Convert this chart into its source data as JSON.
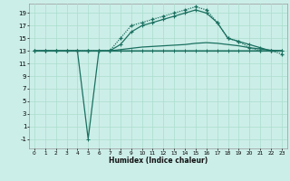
{
  "xlabel": "Humidex (Indice chaleur)",
  "bg_color": "#cceee8",
  "grid_color": "#aaddcc",
  "line_color": "#1a7060",
  "xlim": [
    -0.5,
    23.5
  ],
  "ylim": [
    -2.5,
    20.5
  ],
  "yticks": [
    -1,
    1,
    3,
    5,
    7,
    9,
    11,
    13,
    15,
    17,
    19
  ],
  "xticks": [
    0,
    1,
    2,
    3,
    4,
    5,
    6,
    7,
    8,
    9,
    10,
    11,
    12,
    13,
    14,
    15,
    16,
    17,
    18,
    19,
    20,
    21,
    22,
    23
  ],
  "line1_y": [
    13,
    13,
    13,
    13,
    13,
    13,
    13,
    13,
    13,
    13,
    13,
    13,
    13,
    13,
    13,
    13,
    13,
    13,
    13,
    13,
    13,
    13,
    13,
    13
  ],
  "line2_y": [
    13,
    13,
    13,
    13,
    13,
    -1,
    13,
    13,
    13,
    13,
    13,
    13,
    13,
    13,
    13,
    13,
    13,
    13,
    13,
    13,
    13,
    13,
    13,
    13
  ],
  "line3_y": [
    13,
    13,
    13,
    13,
    13,
    13,
    13,
    13,
    13.2,
    13.4,
    13.6,
    13.7,
    13.8,
    13.9,
    14.0,
    14.2,
    14.3,
    14.2,
    14.0,
    13.8,
    13.5,
    13.3,
    13.1,
    13.0
  ],
  "line4_y": [
    13,
    13,
    13,
    13,
    13,
    13,
    13,
    13,
    14,
    16,
    17,
    17.5,
    18,
    18.5,
    19,
    19.5,
    19,
    17.5,
    15,
    14.5,
    14,
    13.5,
    13,
    13
  ],
  "line5_y": [
    13,
    13,
    13,
    13,
    13,
    13,
    13,
    13,
    15,
    17,
    17.5,
    18,
    18.5,
    19,
    19.5,
    20,
    19.5,
    17.5,
    15,
    14.5,
    13.5,
    13,
    13,
    12.5
  ]
}
